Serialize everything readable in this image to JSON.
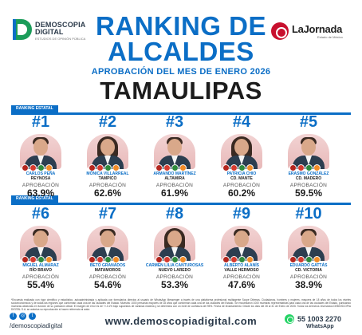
{
  "header": {
    "logo_left": {
      "line1": "DEMOSCOPIA",
      "line2": "DIGITAL",
      "tagline": "ESTUDIOS DE OPINIÓN PÚBLICA"
    },
    "logo_right": {
      "brand": "LaJornada",
      "sub": "Estado de México"
    },
    "title_line1": "RANKING DE",
    "title_line2": "ALCALDES",
    "subtitle": "APROBACIÓN DEL MES DE ENERO 2026",
    "state": "TAMAULIPAS"
  },
  "section_label": "RANKING ESTATAL",
  "approval_label": "APROBACIÓN",
  "mayors": [
    {
      "rank": "#1",
      "name": "CARLOS PEÑA",
      "city": "REYNOSA",
      "approval": "63.9%",
      "approval_pct": 63.9,
      "gender": "m"
    },
    {
      "rank": "#2",
      "name": "MÓNICA VILLARREAL",
      "city": "TAMPICO",
      "approval": "62.6%",
      "approval_pct": 62.6,
      "gender": "f"
    },
    {
      "rank": "#3",
      "name": "ARMANDO MARTÍNEZ",
      "city": "ALTAMIRA",
      "approval": "61.9%",
      "approval_pct": 61.9,
      "gender": "m"
    },
    {
      "rank": "#4",
      "name": "PATRICIA CHIO",
      "city": "CD. MANTE",
      "approval": "60.2%",
      "approval_pct": 60.2,
      "gender": "f"
    },
    {
      "rank": "#5",
      "name": "ERASMO GONZÁLEZ",
      "city": "CD. MADERO",
      "approval": "59.5%",
      "approval_pct": 59.5,
      "gender": "m"
    },
    {
      "rank": "#6",
      "name": "MIGUEL ALMARAZ",
      "city": "RÍO BRAVO",
      "approval": "55.4%",
      "approval_pct": 55.4,
      "gender": "m"
    },
    {
      "rank": "#7",
      "name": "BETO GRANADOS",
      "city": "MATAMOROS",
      "approval": "54.6%",
      "approval_pct": 54.6,
      "gender": "m"
    },
    {
      "rank": "#8",
      "name": "CARMEN LILIA CANTUROSAS",
      "city": "NUEVO LAREDO",
      "approval": "53.3%",
      "approval_pct": 53.3,
      "gender": "f"
    },
    {
      "rank": "#9",
      "name": "ALBERTO ALANÍS",
      "city": "VALLE HERMOSO",
      "approval": "47.6%",
      "approval_pct": 47.6,
      "gender": "m"
    },
    {
      "rank": "#10",
      "name": "EDUARDO GATTÁS",
      "city": "CD. VICTORIA",
      "approval": "38.9%",
      "approval_pct": 38.9,
      "gender": "m"
    }
  ],
  "party_colors": [
    "#b5261e",
    "#d63b2f",
    "#2e8b3d",
    "#f28c28"
  ],
  "disclaimer": "*Encuesta realizada con rigor científico y estadístico, autoadministrada y aplicada con formularios directos al usuario de WhatsApp Messenger a través de una plataforma profesional multiagente Scope Dilemas. Ciudadanos, hombres y mujeres, mayores de 18 años de todos los niveles socioeconómicos y de todas las regiones que conforman cada una de las ciudades del Estado. Muestra: 1000 personas mayores de 18 años que conforman cada una de las ciudades del Estado. Se encuestaron 1000 muestras representativas para cada una de las ciudades del Estado, puntuando muestras aleatorias en función de su población oficial. El margen de error es de +/-3.1% bajo supuestos de varianza máxima y se determina con un nivel de confianza del 95%. Fecha de levantamiento: Desde los días del 28 al 31 de Enero de 2026. Todos los derechos reservados DEMOSCOPIA DIGITAL S.A. se autoriza su reproducción si hacen referencia al autor.",
  "footer": {
    "handle": "/demoscopiadigital",
    "website": "www.demoscopiadigital.com",
    "phone": "55 1003 2270",
    "whatsapp": "WhatsApp",
    "social_icons": [
      "facebook-icon",
      "instagram-icon",
      "twitter-icon"
    ]
  }
}
